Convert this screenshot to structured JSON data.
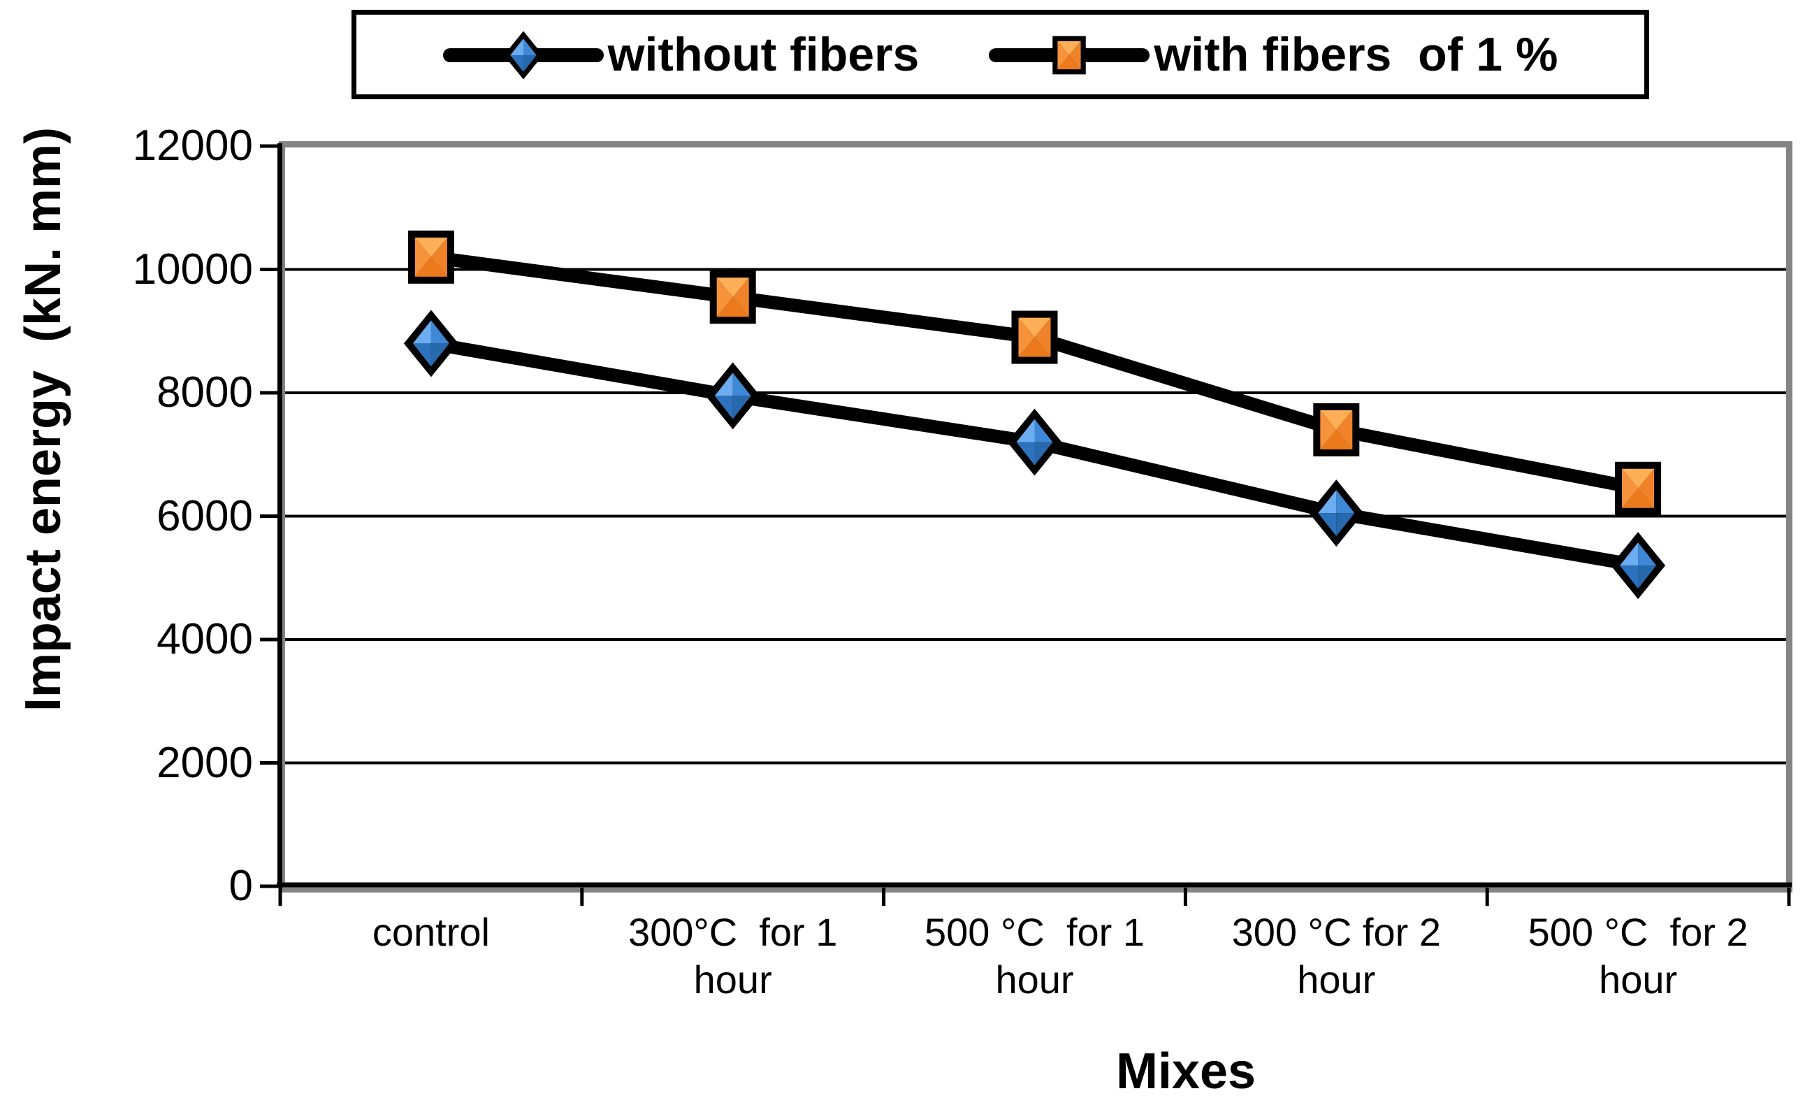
{
  "chart_data": {
    "type": "line",
    "title": "",
    "categories": [
      "control",
      "300°C  for 1\nhour",
      "500 °C  for 1\nhour",
      "300 °C for 2\nhour",
      "500 °C  for 2\nhour"
    ],
    "series": [
      {
        "name": "without fibers",
        "marker": "diamond",
        "color": "#2C72BC",
        "color_light": "#6CACF0",
        "values": [
          8800,
          7950,
          7200,
          6050,
          5200
        ]
      },
      {
        "name": "with fibers  of 1 %",
        "marker": "square",
        "color": "#F0832A",
        "color_light": "#FFAF58",
        "values": [
          10200,
          9550,
          8900,
          7400,
          6450
        ]
      }
    ],
    "xlabel": "Mixes",
    "ylabel": "Impact energy  (kN. mm)",
    "ylim": [
      0,
      12000
    ],
    "ytick_step": 2000,
    "ytick_labels": [
      "0",
      "2000",
      "4000",
      "6000",
      "8000",
      "10000",
      "12000"
    ],
    "grid": "horizontal",
    "gridline_color": "#000000",
    "line_color": "#000000",
    "plot_border_shadow_color": "#848484",
    "legend_position": "top",
    "legend_border": true,
    "background": "#FFFFFF"
  }
}
